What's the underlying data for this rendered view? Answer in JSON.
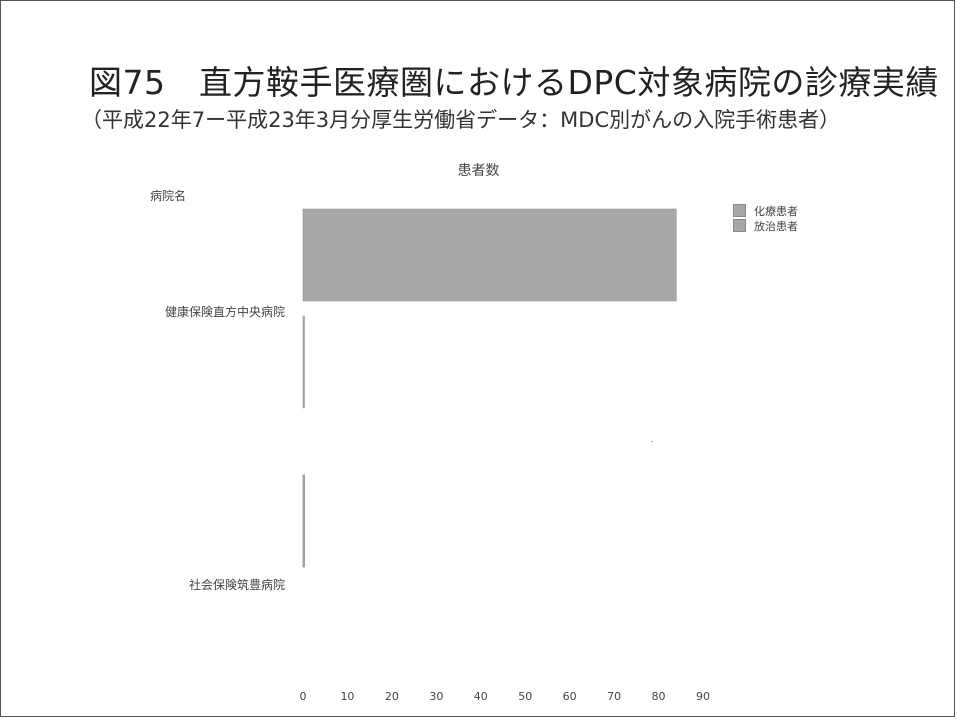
{
  "slide": {
    "title": "図75　直方鞍手医療圏におけるDPC対象病院の診療実績",
    "subtitle": "（平成22年7ー平成23年3月分厚生労働省データ：MDC別がんの入院手術患者）"
  },
  "chart_data": {
    "type": "bar",
    "orientation": "horizontal",
    "title": "患者数",
    "category_axis_label": "病院名",
    "categories": [
      "健康保険直方中央病院",
      "社会保険筑豊病院"
    ],
    "series": [
      {
        "name": "化療患者",
        "values": [
          84,
          0.3
        ]
      },
      {
        "name": "放治患者",
        "values": [
          0.3,
          0.3
        ]
      }
    ],
    "xlim": [
      0,
      90
    ],
    "xticks": [
      0,
      10,
      20,
      30,
      40,
      50,
      60,
      70,
      80,
      90
    ],
    "legend_position": "top-right",
    "grid": false,
    "colors": {
      "bar": "#a8a8a8",
      "bar_edge": "#8c8c8c"
    }
  }
}
